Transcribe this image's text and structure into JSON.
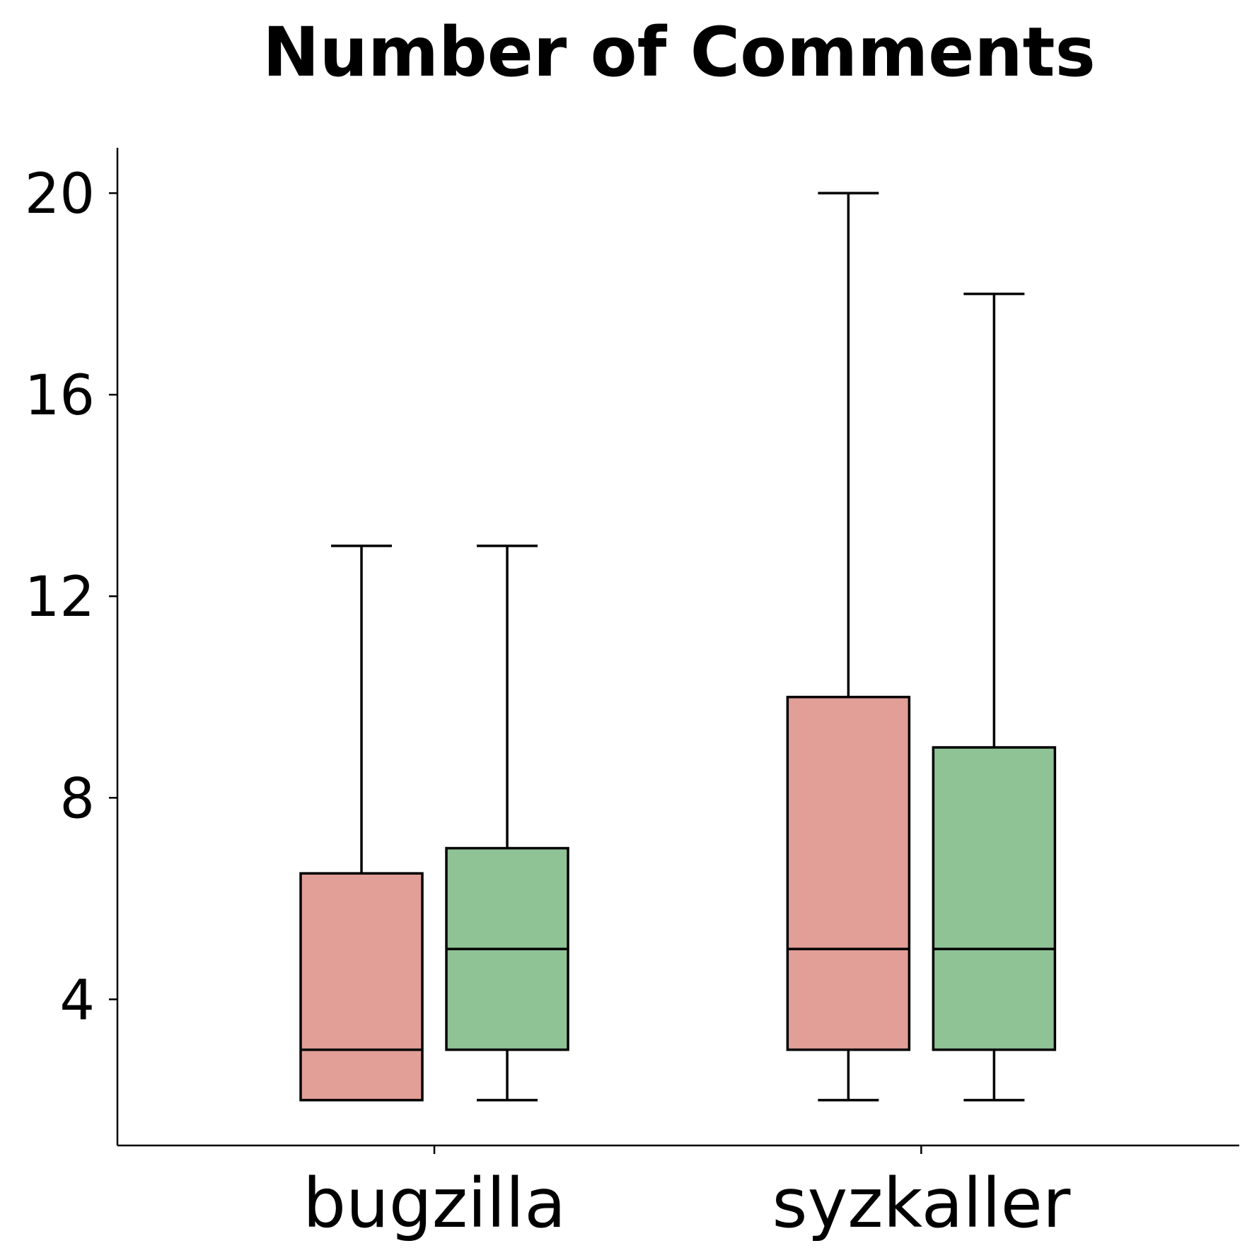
{
  "chart_data": {
    "type": "box",
    "title": "Number of Comments",
    "xlabel": "",
    "ylabel": "",
    "categories": [
      "bugzilla",
      "syzkaller"
    ],
    "yticks": [
      4,
      8,
      12,
      16,
      20
    ],
    "ylim": [
      1.1,
      20.9
    ],
    "grid": false,
    "legend": "none",
    "series": [
      {
        "color": "#e19f97",
        "boxes": [
          {
            "whislo": 2,
            "q1": 2,
            "med": 3,
            "q3": 6.5,
            "whishi": 13
          },
          {
            "whislo": 2,
            "q1": 3,
            "med": 5,
            "q3": 10,
            "whishi": 20
          }
        ]
      },
      {
        "color": "#8fc396",
        "boxes": [
          {
            "whislo": 2,
            "q1": 3,
            "med": 5,
            "q3": 7,
            "whishi": 13
          },
          {
            "whislo": 2,
            "q1": 3,
            "med": 5,
            "q3": 9,
            "whishi": 18
          }
        ]
      }
    ]
  }
}
